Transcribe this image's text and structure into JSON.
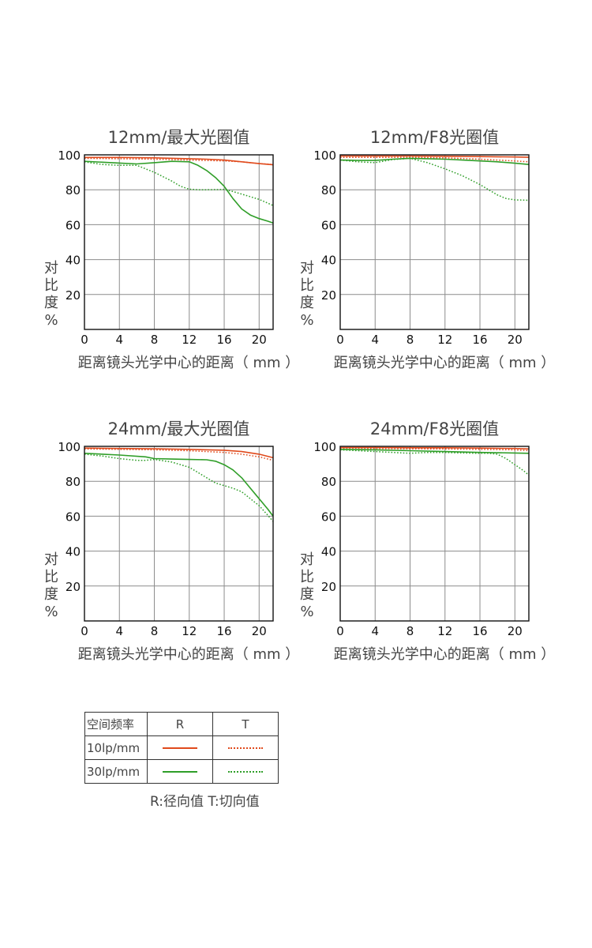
{
  "colors": {
    "red": "#e04a1c",
    "green": "#2f9e28",
    "grid": "#8c8c8c",
    "frame": "#111111"
  },
  "chart_data": [
    {
      "type": "line",
      "title": "12mm/最大光圈值",
      "xlabel": "距离镜头光学中心的距离（ mm ）",
      "ylabel": "对比度%",
      "xlim": [
        0,
        21.6
      ],
      "ylim": [
        0,
        100
      ],
      "xticks": [
        0,
        4,
        8,
        12,
        16,
        20
      ],
      "yticks": [
        20,
        40,
        60,
        80,
        100
      ],
      "grid": true,
      "series": [
        {
          "name": "10lp/mm R",
          "color": "red",
          "style": "solid",
          "x": [
            0,
            4,
            8,
            12,
            14,
            16,
            18,
            20,
            21.6
          ],
          "y": [
            98.5,
            98.5,
            98.3,
            97.8,
            97.5,
            97,
            96,
            95,
            94.3
          ]
        },
        {
          "name": "10lp/mm T",
          "color": "red",
          "style": "dotted",
          "x": [
            0,
            4,
            8,
            12,
            16,
            18,
            20,
            21.6
          ],
          "y": [
            98,
            97.8,
            97.5,
            97,
            96.5,
            96,
            95,
            94.5
          ]
        },
        {
          "name": "30lp/mm R",
          "color": "green",
          "style": "solid",
          "x": [
            0,
            4,
            6,
            8,
            10,
            12,
            13,
            14,
            15,
            16,
            17,
            18,
            19,
            20,
            21,
            21.6
          ],
          "y": [
            96.3,
            95.3,
            94.8,
            95.5,
            96.3,
            96,
            94,
            91,
            87,
            82,
            75,
            69,
            65.5,
            63.5,
            62,
            61
          ]
        },
        {
          "name": "30lp/mm T",
          "color": "green",
          "style": "dotted",
          "x": [
            0,
            2,
            4,
            6,
            8,
            10,
            11,
            12,
            13,
            14,
            16,
            17,
            18,
            19,
            20,
            21.6
          ],
          "y": [
            96,
            94.5,
            94,
            94,
            90,
            85,
            82,
            80.3,
            80,
            80,
            80.2,
            79,
            77.5,
            76,
            74.5,
            71
          ]
        }
      ]
    },
    {
      "type": "line",
      "title": "12mm/F8光圈值",
      "xlabel": "距离镜头光学中心的距离（ mm ）",
      "ylabel": "对比度%",
      "xlim": [
        0,
        21.6
      ],
      "ylim": [
        0,
        100
      ],
      "xticks": [
        0,
        4,
        8,
        12,
        16,
        20
      ],
      "yticks": [
        20,
        40,
        60,
        80,
        100
      ],
      "grid": true,
      "series": [
        {
          "name": "10lp/mm R",
          "color": "red",
          "style": "solid",
          "x": [
            0,
            4,
            8,
            12,
            16,
            20,
            21.6
          ],
          "y": [
            99.3,
            99.3,
            99.3,
            99.2,
            99,
            98.8,
            98.6
          ]
        },
        {
          "name": "10lp/mm T",
          "color": "red",
          "style": "dotted",
          "x": [
            0,
            4,
            8,
            12,
            16,
            20,
            21.6
          ],
          "y": [
            98.5,
            98.5,
            98.6,
            98.3,
            97.5,
            96.5,
            96
          ]
        },
        {
          "name": "30lp/mm R",
          "color": "green",
          "style": "solid",
          "x": [
            0,
            2,
            4,
            6,
            8,
            10,
            12,
            14,
            16,
            18,
            20,
            21.6
          ],
          "y": [
            97,
            96.8,
            96.8,
            97.5,
            98,
            97.8,
            97.5,
            97,
            96.5,
            96,
            95.2,
            94.5
          ]
        },
        {
          "name": "30lp/mm T",
          "color": "green",
          "style": "dotted",
          "x": [
            0,
            2,
            4,
            6,
            8,
            10,
            12,
            14,
            16,
            17,
            18,
            19,
            20,
            21.6
          ],
          "y": [
            97,
            96,
            95.5,
            97.3,
            98,
            95.5,
            92,
            88,
            83,
            80,
            77,
            75,
            74.2,
            74
          ]
        }
      ]
    },
    {
      "type": "line",
      "title": "24mm/最大光圈值",
      "xlabel": "距离镜头光学中心的距离（ mm ）",
      "ylabel": "对比度%",
      "xlim": [
        0,
        21.6
      ],
      "ylim": [
        0,
        100
      ],
      "xticks": [
        0,
        4,
        8,
        12,
        16,
        20
      ],
      "yticks": [
        20,
        40,
        60,
        80,
        100
      ],
      "grid": true,
      "series": [
        {
          "name": "10lp/mm R",
          "color": "red",
          "style": "solid",
          "x": [
            0,
            4,
            8,
            12,
            16,
            18,
            20,
            21.6
          ],
          "y": [
            99,
            98.8,
            98.6,
            98.3,
            97.8,
            97,
            95.5,
            93.5
          ]
        },
        {
          "name": "10lp/mm T",
          "color": "red",
          "style": "dotted",
          "x": [
            0,
            4,
            8,
            12,
            16,
            18,
            20,
            21.6
          ],
          "y": [
            98.5,
            98.3,
            98,
            97.5,
            96.5,
            95.5,
            94,
            92
          ]
        },
        {
          "name": "30lp/mm R",
          "color": "green",
          "style": "solid",
          "x": [
            0,
            4,
            7,
            8,
            10,
            12,
            14,
            15,
            16,
            17,
            18,
            19,
            20,
            21,
            21.6
          ],
          "y": [
            96,
            95,
            94,
            93,
            92.7,
            92.5,
            92.3,
            91.5,
            89.5,
            86.5,
            82,
            76,
            70,
            64,
            60
          ]
        },
        {
          "name": "30lp/mm T",
          "color": "green",
          "style": "dotted",
          "x": [
            0,
            2,
            4,
            6,
            7,
            8,
            10,
            12,
            13,
            14,
            15,
            16,
            17,
            18,
            19,
            20,
            21,
            21.6
          ],
          "y": [
            95.5,
            94.5,
            93,
            92,
            92,
            92.5,
            91,
            88,
            85,
            82,
            79,
            77.5,
            76,
            74,
            70,
            66,
            60.5,
            57
          ]
        }
      ]
    },
    {
      "type": "line",
      "title": "24mm/F8光圈值",
      "xlabel": "距离镜头光学中心的距离（ mm ）",
      "ylabel": "对比度%",
      "xlim": [
        0,
        21.6
      ],
      "ylim": [
        0,
        100
      ],
      "xticks": [
        0,
        4,
        8,
        12,
        16,
        20
      ],
      "yticks": [
        20,
        40,
        60,
        80,
        100
      ],
      "grid": true,
      "series": [
        {
          "name": "10lp/mm R",
          "color": "red",
          "style": "solid",
          "x": [
            0,
            4,
            8,
            12,
            16,
            20,
            21.6
          ],
          "y": [
            99.3,
            99.3,
            99.2,
            99.2,
            99,
            98.8,
            98.5
          ]
        },
        {
          "name": "10lp/mm T",
          "color": "red",
          "style": "dotted",
          "x": [
            0,
            4,
            8,
            12,
            16,
            20,
            21.6
          ],
          "y": [
            99,
            98.8,
            98.6,
            98.5,
            98.3,
            98,
            97.5
          ]
        },
        {
          "name": "30lp/mm R",
          "color": "green",
          "style": "solid",
          "x": [
            0,
            4,
            8,
            12,
            16,
            20,
            21.6
          ],
          "y": [
            98.3,
            98,
            97.5,
            97,
            96.5,
            96.2,
            96
          ]
        },
        {
          "name": "30lp/mm T",
          "color": "green",
          "style": "dotted",
          "x": [
            0,
            2,
            4,
            6,
            8,
            10,
            12,
            14,
            16,
            17,
            18,
            19,
            20,
            21,
            21.6
          ],
          "y": [
            98,
            97.5,
            97,
            96.5,
            96,
            96.5,
            96.5,
            96.2,
            96,
            96,
            95.5,
            93,
            89.5,
            86,
            83.5
          ]
        }
      ]
    }
  ],
  "legend": {
    "header": "空间频率",
    "col_r": "R",
    "col_t": "T",
    "row1": "10lp/mm",
    "row2": "30lp/mm"
  },
  "note": "R:径向值 T:切向值"
}
